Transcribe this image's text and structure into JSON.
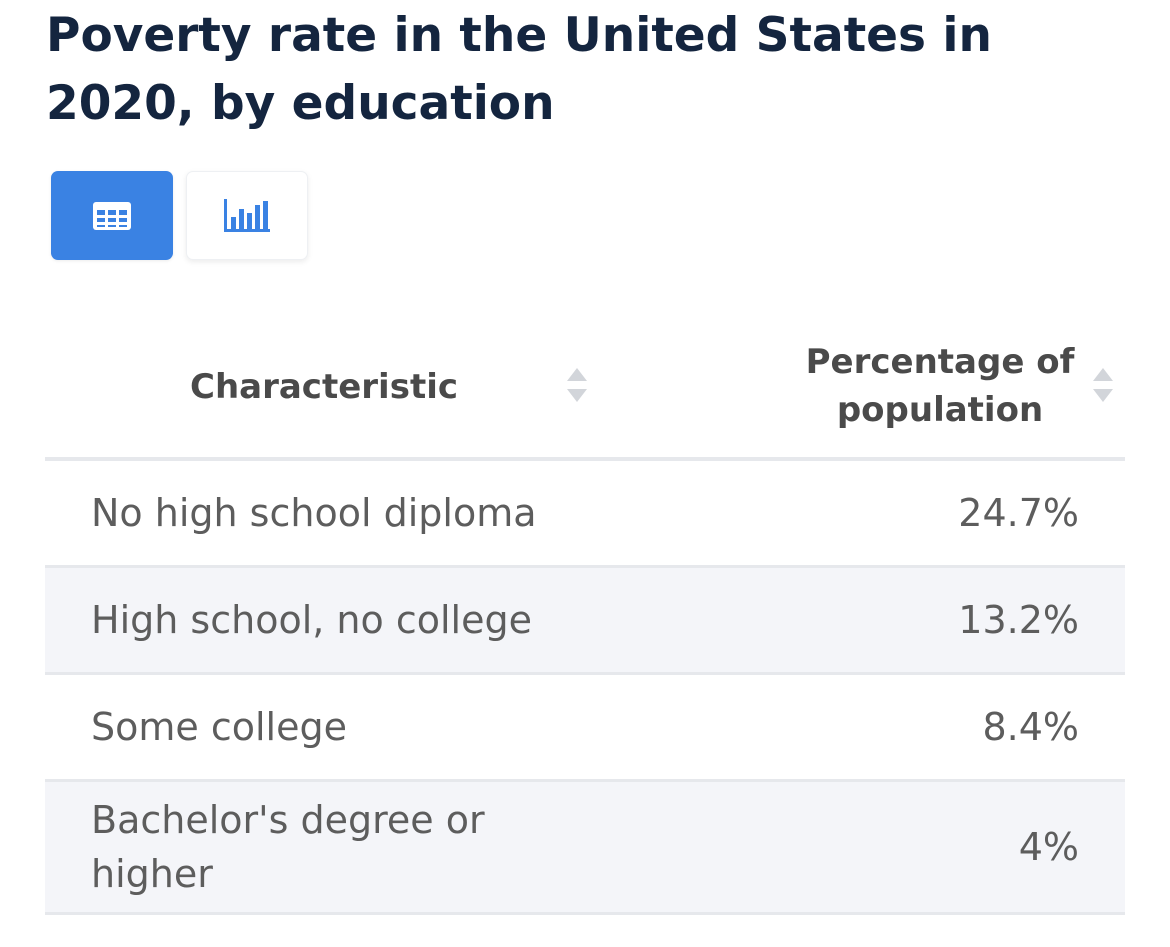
{
  "header": {
    "title": "Poverty rate in the United States in 2020, by education"
  },
  "view_toggle": {
    "table_icon": "table-grid-icon",
    "chart_icon": "bar-chart-icon",
    "active": "table",
    "active_color": "#3a82e3"
  },
  "table": {
    "columns": [
      {
        "label": "Characteristic",
        "sort_icon": "sort-arrows-icon"
      },
      {
        "label": "Percentage of population",
        "sort_icon": "sort-arrows-icon"
      }
    ],
    "rows": [
      {
        "characteristic": "No high school diploma",
        "value": "24.7%"
      },
      {
        "characteristic": "High school, no college",
        "value": "13.2%"
      },
      {
        "characteristic": "Some college",
        "value": "8.4%"
      },
      {
        "characteristic": "Bachelor's degree or higher",
        "value": "4%"
      }
    ]
  },
  "chart_data": {
    "type": "table",
    "title": "Poverty rate in the United States in 2020, by education",
    "columns": [
      "Characteristic",
      "Percentage of population"
    ],
    "categories": [
      "No high school diploma",
      "High school, no college",
      "Some college",
      "Bachelor's degree or higher"
    ],
    "values": [
      24.7,
      13.2,
      8.4,
      4
    ]
  }
}
